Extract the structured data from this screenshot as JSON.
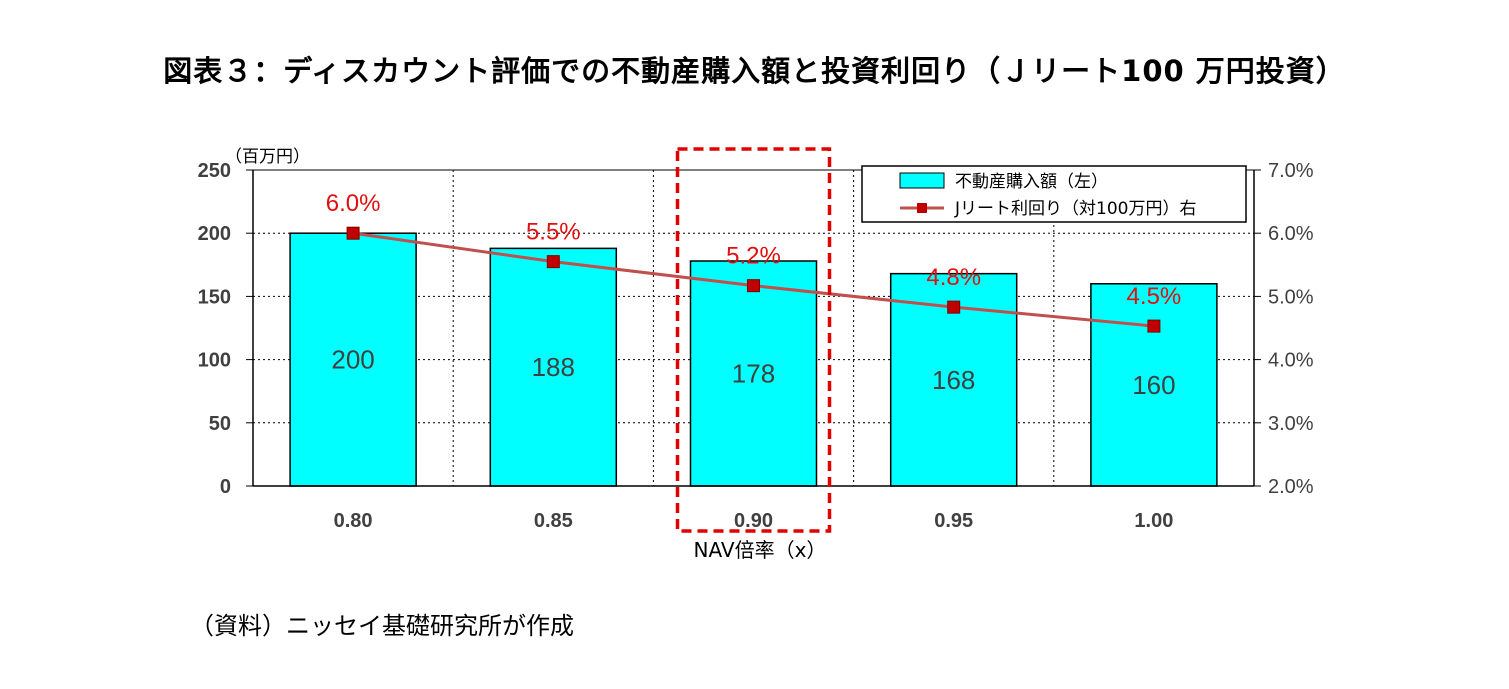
{
  "title": "図表３：ディスカウント評価での不動産購入額と投資利回り（Ｊリート100 万円投資）",
  "source": "（資料）ニッセイ基礎研究所が作成",
  "chart_data": {
    "type": "bar",
    "categories": [
      "0.80",
      "0.85",
      "0.90",
      "0.95",
      "1.00"
    ],
    "xlabel": "NAV倍率（x）",
    "y_unit": "（百万円）",
    "ylim": [
      0,
      250
    ],
    "yticks": [
      "0",
      "50",
      "100",
      "150",
      "200",
      "250"
    ],
    "y2lim": [
      2.0,
      7.0
    ],
    "y2ticks": [
      "2.0%",
      "3.0%",
      "4.0%",
      "5.0%",
      "6.0%",
      "7.0%"
    ],
    "grid": true,
    "legend_position": "top-right",
    "highlighted_category": "0.90",
    "series": [
      {
        "name": "不動産購入額（左）",
        "type": "bar",
        "axis": "left",
        "color": "#00ffff",
        "values": [
          200,
          188,
          178,
          168,
          160
        ],
        "labels": [
          "200",
          "188",
          "178",
          "168",
          "160"
        ]
      },
      {
        "name": "Jリート利回り（対100万円）右",
        "type": "line",
        "axis": "right",
        "color": "#c0504d",
        "marker_color": "#c00000",
        "values": [
          6.0,
          5.55,
          5.17,
          4.83,
          4.53
        ],
        "labels": [
          "6.0%",
          "5.5%",
          "5.2%",
          "4.8%",
          "4.5%"
        ]
      }
    ]
  }
}
